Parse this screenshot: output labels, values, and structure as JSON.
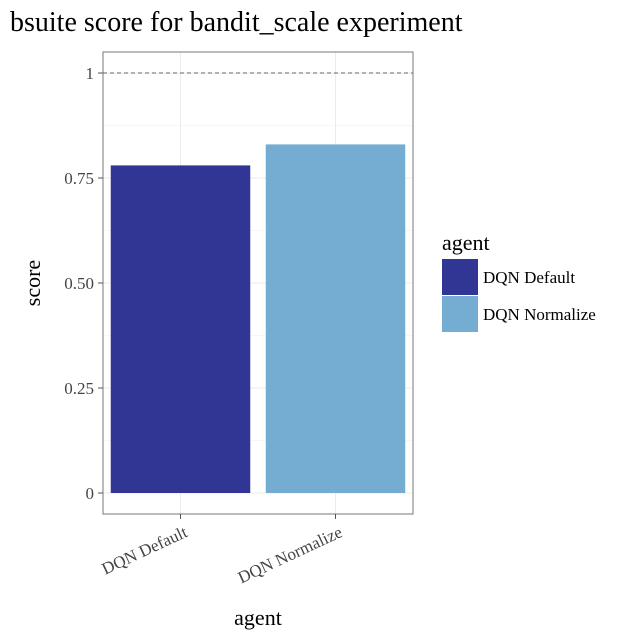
{
  "chart_data": {
    "type": "bar",
    "title": "bsuite score for bandit_scale experiment",
    "xlabel": "agent",
    "ylabel": "score",
    "categories": [
      "DQN Default",
      "DQN Normalize"
    ],
    "values": [
      0.78,
      0.83
    ],
    "colors": [
      "#313695",
      "#74add1"
    ],
    "ylim": [
      -0.05,
      1.05
    ],
    "yticks": [
      0,
      0.25,
      0.5,
      0.75,
      1
    ],
    "ytick_labels": [
      "0",
      "0.25",
      "0.50",
      "0.75",
      "1"
    ],
    "reference_line": {
      "y": 1,
      "style": "dashed"
    },
    "grid": true,
    "legend": {
      "title": "agent",
      "position": "right",
      "entries": [
        "DQN Default",
        "DQN Normalize"
      ]
    }
  }
}
